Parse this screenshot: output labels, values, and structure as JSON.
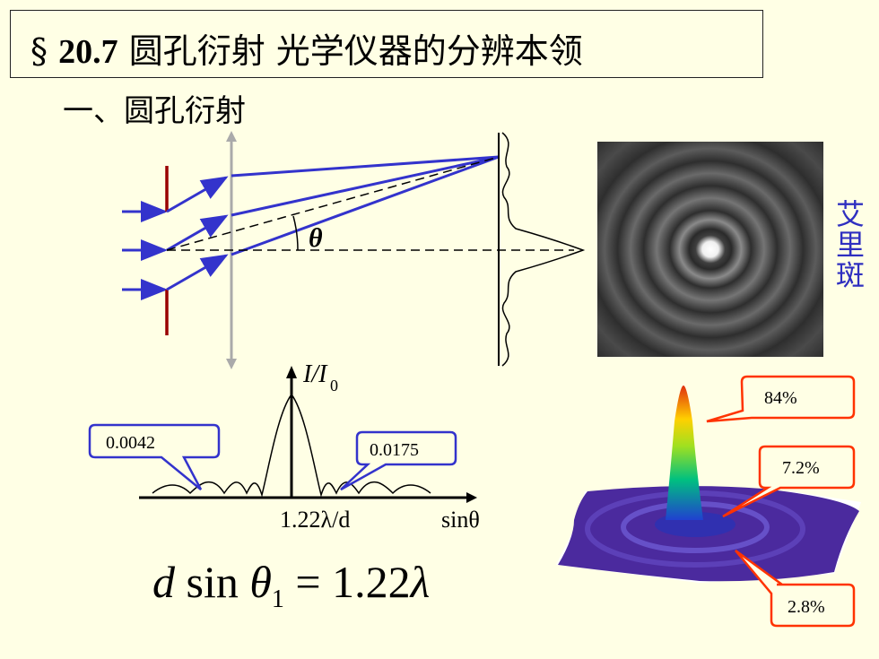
{
  "title": {
    "section": "§",
    "number": "20.7",
    "text": "圆孔衍射  光学仪器的分辨本领"
  },
  "subtitle": "一、圆孔衍射",
  "diagram": {
    "theta_label": "θ"
  },
  "airy_label": [
    "艾",
    "里",
    "斑"
  ],
  "intensity_plot": {
    "y_label_main": "I/I",
    "y_label_sub": "0",
    "x_tick_label": "1.22λ/d",
    "x_axis_label": "sinθ",
    "callout_left": "0.0042",
    "callout_right": "0.0175"
  },
  "pattern_3d": {
    "callout_top": "84%",
    "callout_mid": "7.2%",
    "callout_bottom": "2.8%"
  },
  "formula": {
    "d": "d",
    "sin": " sin",
    "theta": "θ",
    "sub": "1",
    "rhs": " = 1.22",
    "lambda": "λ"
  },
  "colors": {
    "background": "#ffffe5",
    "rays": "#3333cc",
    "slit": "#990000",
    "callout_border_blue": "#3333cc",
    "callout_border_red": "#ff3300",
    "airy_label": "#2f2fc0"
  }
}
